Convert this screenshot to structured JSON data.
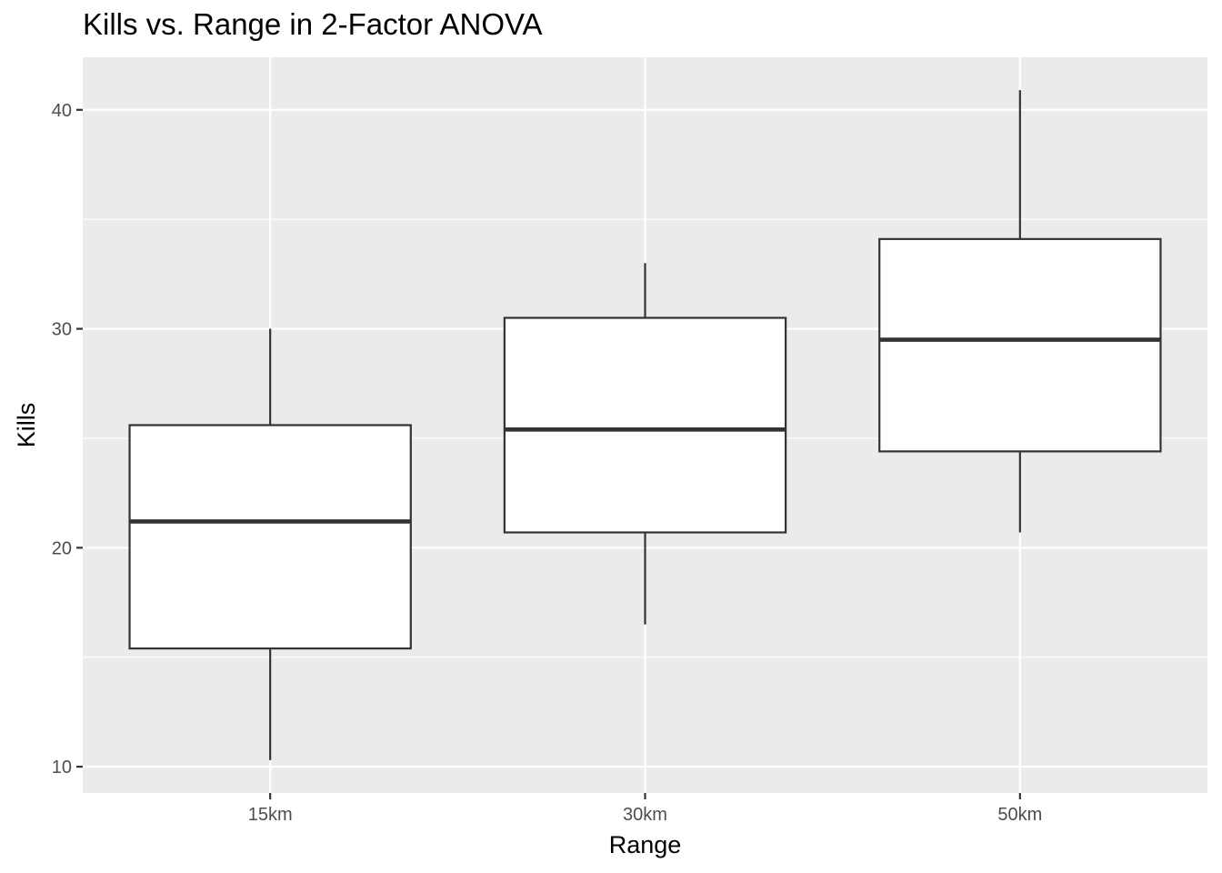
{
  "chart_data": {
    "type": "boxplot",
    "title": "Kills vs. Range in 2-Factor ANOVA",
    "xlabel": "Range",
    "ylabel": "Kills",
    "categories": [
      "15km",
      "30km",
      "50km"
    ],
    "boxes": [
      {
        "category": "15km",
        "min": 10.3,
        "q1": 15.4,
        "median": 21.2,
        "q3": 25.6,
        "max": 30.0
      },
      {
        "category": "30km",
        "min": 16.5,
        "q1": 20.7,
        "median": 25.4,
        "q3": 30.5,
        "max": 33.0
      },
      {
        "category": "50km",
        "min": 20.7,
        "q1": 24.4,
        "median": 29.5,
        "q3": 34.1,
        "max": 40.9
      }
    ],
    "ylim": [
      8.8,
      42.4
    ],
    "yticks": [
      10,
      20,
      30,
      40
    ],
    "grid": true,
    "colors": {
      "panel_background": "#ebebeb",
      "grid_line": "#ffffff",
      "box_fill": "#ffffff",
      "box_stroke": "#333333",
      "tick_text": "#4d4d4d"
    }
  }
}
